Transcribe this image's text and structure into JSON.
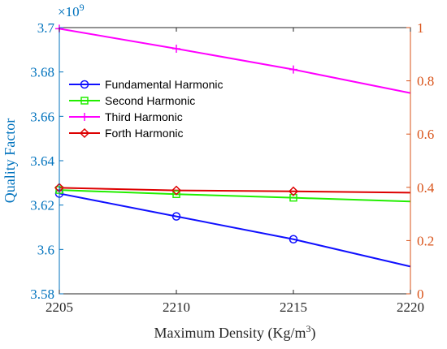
{
  "chart_data": {
    "type": "line",
    "xlabel": "Maximum Density (Kg/m",
    "xlabel_superscript": "3",
    "xlabel_suffix": ")",
    "ylabel_left": "Quality Factor",
    "ylabel_right": "",
    "left_exponent_base": "×10",
    "left_exponent_power": "9",
    "xlim": [
      2205,
      2220
    ],
    "ylim_left": [
      3.58,
      3.7
    ],
    "ylim_right": [
      0,
      1
    ],
    "x_ticks": [
      "2205",
      "2210",
      "2215",
      "2220"
    ],
    "y_ticks_left": [
      "3.58",
      "3.6",
      "3.62",
      "3.64",
      "3.66",
      "3.68",
      "3.7"
    ],
    "y_ticks_right": [
      "0",
      "0.2",
      "0.4",
      "0.6",
      "0.8",
      "1"
    ],
    "left_axis_color": "#0072BD",
    "right_axis_color": "#D95319",
    "grid": false,
    "legend_position": "upper-left",
    "series": [
      {
        "name": "Fundamental Harmonic",
        "color": "#1010ff",
        "marker": "circle",
        "x": [
          2205,
          2210,
          2215,
          2220
        ],
        "values": [
          3.6252,
          3.6149,
          3.6046,
          3.5923
        ]
      },
      {
        "name": "Second Harmonic",
        "color": "#22ee00",
        "marker": "square",
        "x": [
          2205,
          2210,
          2215,
          2220
        ],
        "values": [
          3.6268,
          3.6249,
          3.6233,
          3.6216
        ]
      },
      {
        "name": "Third Harmonic",
        "color": "#ff00ff",
        "marker": "plus",
        "x": [
          2205,
          2210,
          2215,
          2220
        ],
        "values": [
          3.6995,
          3.6905,
          3.6811,
          3.6705
        ]
      },
      {
        "name": "Forth Harmonic",
        "color": "#dd0000",
        "marker": "diamond",
        "x": [
          2205,
          2210,
          2215,
          2220
        ],
        "values": [
          3.6278,
          3.6266,
          3.6262,
          3.6256
        ]
      }
    ]
  }
}
